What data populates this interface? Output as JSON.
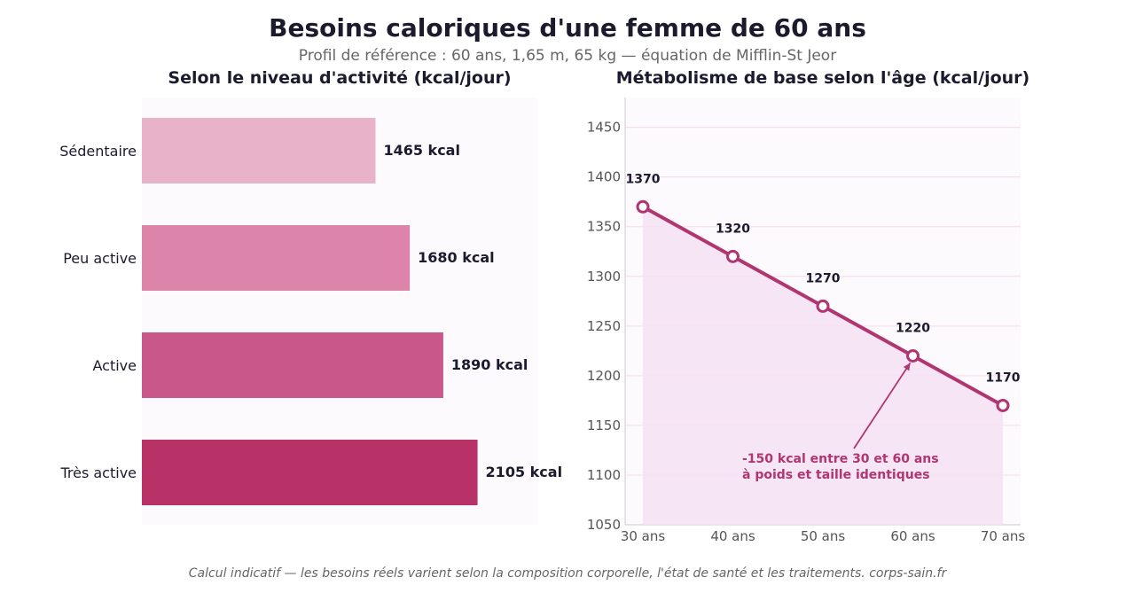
{
  "title": "Besoins caloriques d'une femme de 60 ans",
  "subtitle": "Profil de référence : 60 ans, 1,65 m, 65 kg — équation de Mifflin-St Jeor",
  "footer": "Calcul indicatif — les besoins réels varient selon la composition corporelle, l'état de santé et les traitements.  corps-sain.fr",
  "chart_data": [
    {
      "type": "bar",
      "orientation": "horizontal",
      "title": "Selon le niveau d'activité (kcal/jour)",
      "categories": [
        "Sédentaire",
        "Peu active",
        "Active",
        "Très active"
      ],
      "values": [
        1465,
        1680,
        1890,
        2105
      ],
      "value_labels": [
        "1465 kcal",
        "1680 kcal",
        "1890 kcal",
        "2105 kcal"
      ],
      "colors": [
        "#e8b2c8",
        "#dd84aa",
        "#c9578a",
        "#b83268"
      ],
      "xlim": [
        0,
        2480
      ],
      "grid": false
    },
    {
      "type": "line",
      "title": "Métabolisme de base selon l'âge (kcal/jour)",
      "x": [
        "30 ans",
        "40 ans",
        "50 ans",
        "60 ans",
        "70 ans"
      ],
      "y": [
        1370,
        1320,
        1270,
        1220,
        1170
      ],
      "point_labels": [
        "1370",
        "1320",
        "1270",
        "1220",
        "1170"
      ],
      "ylim": [
        1050,
        1480
      ],
      "yticks": [
        1050,
        1100,
        1150,
        1200,
        1250,
        1300,
        1350,
        1400,
        1450
      ],
      "grid": true,
      "line_color": "#b03570",
      "fill_color": "#f5e1f3",
      "annotation": {
        "lines": [
          "-150 kcal entre 30 et 60 ans",
          "à poids et taille identiques"
        ],
        "target_index": 3
      }
    }
  ]
}
